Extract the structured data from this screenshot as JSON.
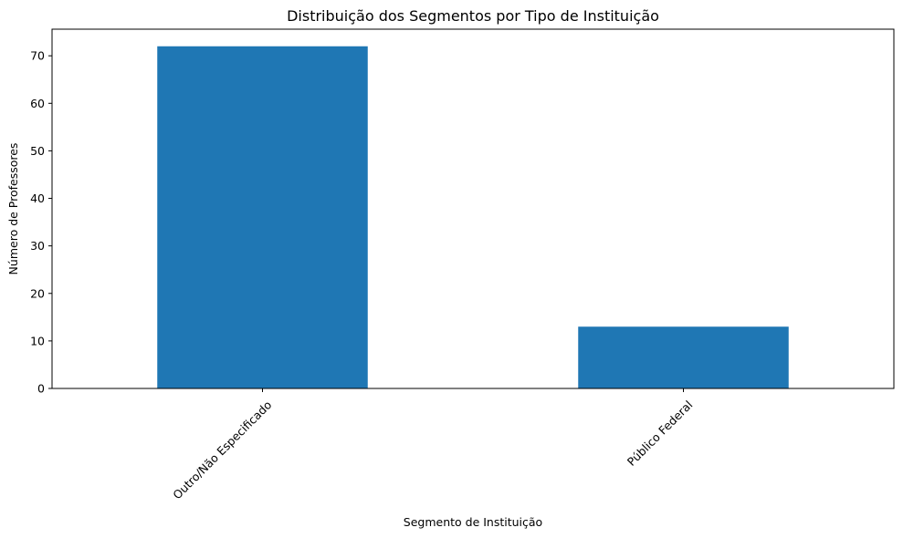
{
  "chart_data": {
    "type": "bar",
    "title": "Distribuição dos Segmentos por Tipo de Instituição",
    "xlabel": "Segmento de Instituição",
    "ylabel": "Número de Professores",
    "categories": [
      "Outro/Não Especificado",
      "Público Federal"
    ],
    "values": [
      72,
      13
    ],
    "ylim": [
      0,
      75.6
    ],
    "yticks": [
      0,
      10,
      20,
      30,
      40,
      50,
      60,
      70
    ],
    "bar_color": "#1f77b4",
    "grid": false,
    "legend": "none"
  }
}
